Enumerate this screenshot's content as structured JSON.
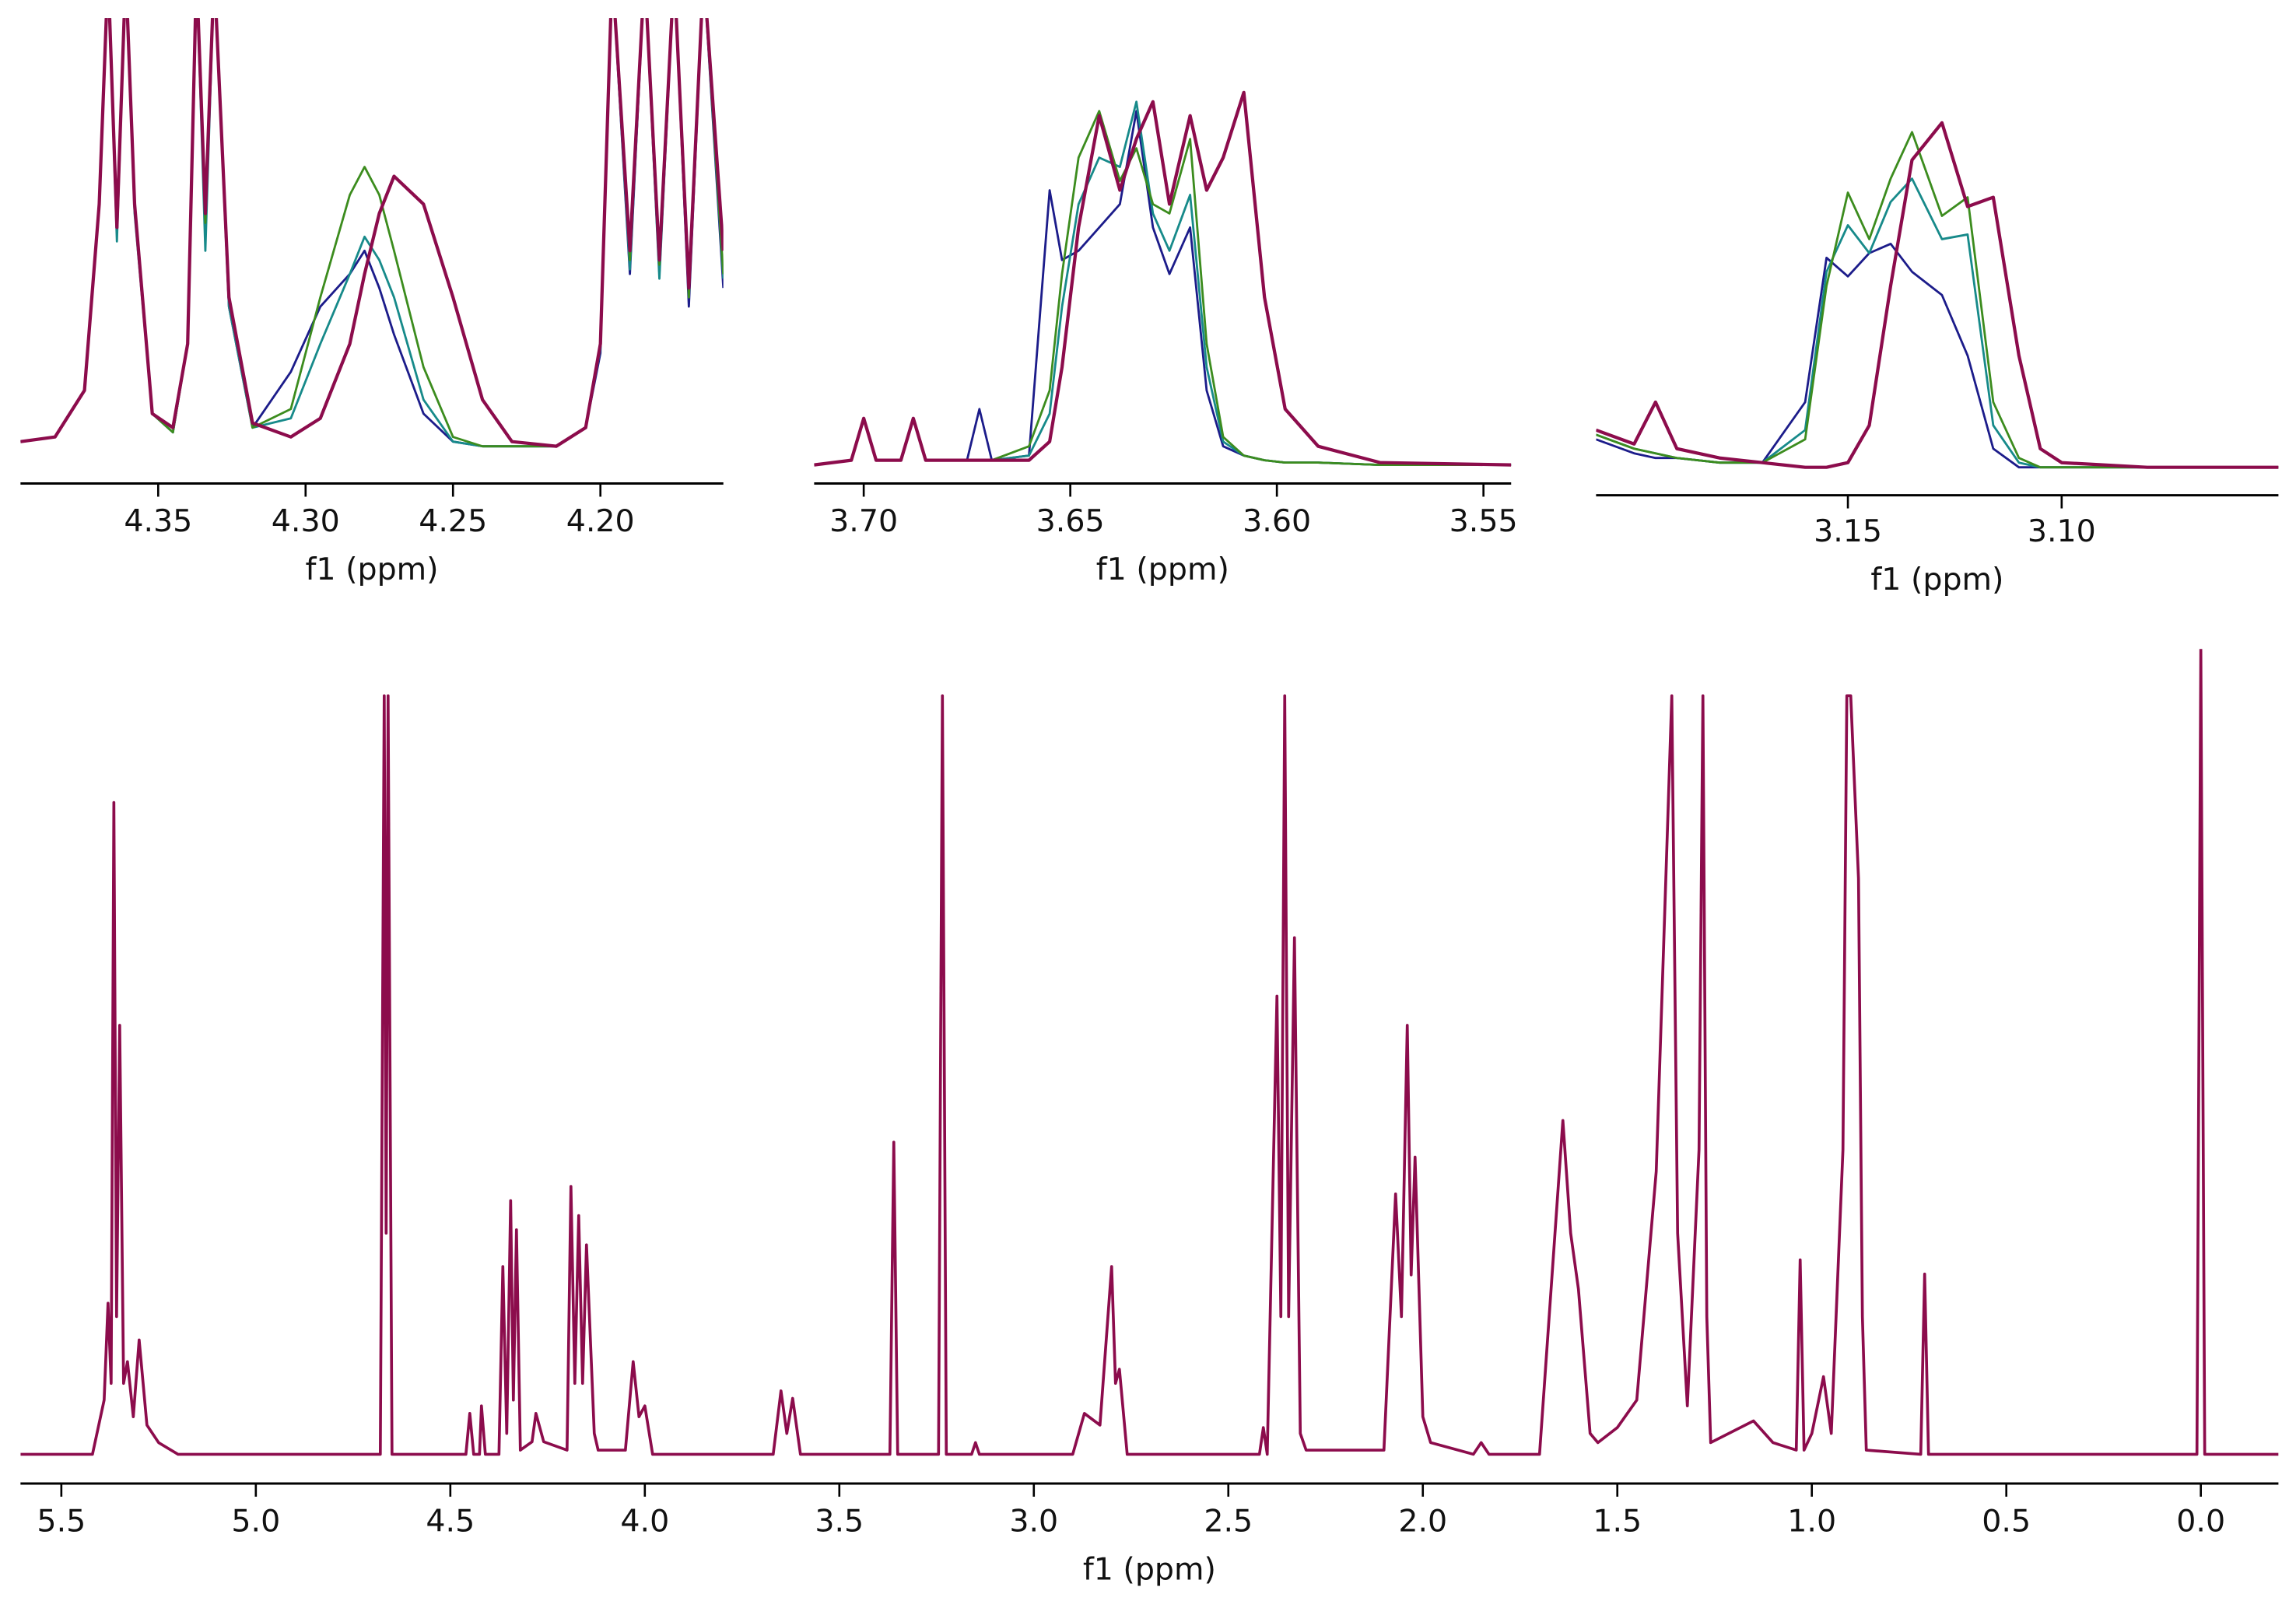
{
  "chart_data": [
    {
      "type": "line",
      "xlabel": "f1 (ppm)",
      "xlim": [
        4.3967,
        4.1583
      ],
      "ylim": [
        0,
        100
      ],
      "xticks": [
        4.35,
        {
          "value": 4.3,
          "label": "4.30"
        },
        4.25,
        {
          "value": 4.2,
          "label": "4.20"
        }
      ],
      "x": [
        4.3967,
        4.385,
        4.375,
        4.37,
        4.367,
        4.364,
        4.361,
        4.358,
        4.352,
        4.345,
        4.34,
        4.337,
        4.334,
        4.331,
        4.326,
        4.318,
        4.305,
        4.295,
        4.285,
        4.28,
        4.275,
        4.27,
        4.26,
        4.25,
        4.24,
        4.23,
        4.215,
        4.205,
        4.2,
        4.196,
        4.19,
        4.185,
        4.18,
        4.175,
        4.17,
        4.165,
        4.1583
      ],
      "series": [
        {
          "color": "#1c1c8a",
          "values": [
            9,
            10,
            20,
            60,
            110,
            55,
            110,
            60,
            15,
            11,
            30,
            110,
            55,
            110,
            38,
            12,
            24,
            38,
            45,
            50,
            42,
            32,
            15,
            9,
            8,
            8,
            8,
            12,
            28,
            110,
            45,
            110,
            45,
            110,
            38,
            110,
            42
          ]
        },
        {
          "color": "#178a8a",
          "values": [
            9,
            10,
            20,
            60,
            110,
            52,
            110,
            58,
            15,
            11,
            30,
            110,
            50,
            110,
            38,
            12,
            14,
            30,
            45,
            53,
            48,
            40,
            18,
            9,
            8,
            8,
            8,
            12,
            29,
            110,
            46,
            110,
            44,
            110,
            40,
            110,
            44
          ]
        },
        {
          "color": "#3c8c1e",
          "values": [
            9,
            10,
            20,
            60,
            110,
            55,
            110,
            60,
            15,
            11,
            30,
            110,
            56,
            110,
            40,
            12,
            16,
            40,
            62,
            68,
            62,
            50,
            25,
            10,
            8,
            8,
            8,
            12,
            30,
            110,
            48,
            110,
            47,
            110,
            40,
            110,
            45
          ]
        },
        {
          "color": "#8c0c4c",
          "values": [
            9,
            10,
            20,
            60,
            110,
            55,
            110,
            60,
            15,
            12,
            30,
            110,
            58,
            110,
            40,
            13,
            10,
            14,
            30,
            45,
            58,
            66,
            60,
            40,
            18,
            9,
            8,
            12,
            30,
            110,
            50,
            110,
            48,
            110,
            42,
            110,
            50
          ]
        }
      ]
    },
    {
      "type": "line",
      "xlabel": "f1 (ppm)",
      "xlim": [
        3.712,
        3.5433
      ],
      "ylim": [
        0,
        100
      ],
      "xticks": [
        {
          "value": 3.7,
          "label": "3.70"
        },
        3.65,
        {
          "value": 3.6,
          "label": "3.60"
        },
        3.55
      ],
      "x": [
        3.712,
        3.703,
        3.7,
        3.697,
        3.691,
        3.688,
        3.685,
        3.675,
        3.672,
        3.669,
        3.66,
        3.655,
        3.652,
        3.648,
        3.643,
        3.638,
        3.634,
        3.63,
        3.626,
        3.621,
        3.617,
        3.613,
        3.608,
        3.603,
        3.598,
        3.59,
        3.575,
        3.5433
      ],
      "series": [
        {
          "color": "#1c1c8a",
          "values": [
            4,
            5,
            14,
            5,
            5,
            14,
            5,
            5,
            16,
            5,
            6,
            63,
            48,
            50,
            55,
            60,
            80,
            55,
            45,
            55,
            20,
            8,
            6,
            5,
            4.5,
            4.5,
            4,
            4
          ]
        },
        {
          "color": "#178a8a",
          "values": [
            4,
            5,
            14,
            5,
            5,
            14,
            5,
            5,
            5,
            5,
            6,
            15,
            38,
            60,
            70,
            68,
            82,
            58,
            50,
            62,
            25,
            9,
            6,
            5,
            4.5,
            4.5,
            4,
            4
          ]
        },
        {
          "color": "#3c8c1e",
          "values": [
            4,
            5,
            14,
            5,
            5,
            14,
            5,
            5,
            5,
            5,
            8,
            20,
            45,
            70,
            80,
            65,
            72,
            60,
            58,
            74,
            30,
            10,
            6,
            5,
            4.5,
            4.5,
            4,
            4
          ]
        },
        {
          "color": "#8c0c4c",
          "values": [
            4,
            5,
            14,
            5,
            5,
            14,
            5,
            5,
            5,
            5,
            5,
            9,
            25,
            55,
            79,
            63,
            74,
            82,
            60,
            79,
            63,
            70,
            84,
            40,
            16,
            8,
            4.5,
            4
          ]
        }
      ]
    },
    {
      "type": "line",
      "xlabel": "f1 (ppm)",
      "xlim": [
        3.2089,
        3.0493
      ],
      "ylim": [
        0,
        100
      ],
      "xticks": [
        3.15,
        {
          "value": 3.1,
          "label": "3.10"
        }
      ],
      "x": [
        3.2089,
        3.2,
        3.195,
        3.19,
        3.18,
        3.17,
        3.16,
        3.155,
        3.15,
        3.145,
        3.14,
        3.135,
        3.128,
        3.122,
        3.116,
        3.11,
        3.105,
        3.1,
        3.08,
        3.0493
      ],
      "series": [
        {
          "color": "#1c1c8a",
          "values": [
            12,
            9,
            8,
            8,
            7,
            7,
            20,
            51,
            47,
            52,
            54,
            48,
            43,
            30,
            10,
            6,
            6,
            6,
            6,
            6
          ]
        },
        {
          "color": "#178a8a",
          "values": [
            13,
            10,
            9,
            8,
            7,
            7,
            14,
            48,
            58,
            52,
            63,
            68,
            55,
            56,
            15,
            7,
            6,
            6,
            6,
            6
          ]
        },
        {
          "color": "#3c8c1e",
          "values": [
            13,
            10,
            9,
            8,
            7,
            7,
            12,
            45,
            65,
            55,
            68,
            78,
            60,
            64,
            20,
            8,
            6,
            6,
            6,
            6
          ]
        },
        {
          "color": "#8c0c4c",
          "values": [
            14,
            11,
            20,
            10,
            8,
            7,
            6,
            6,
            7,
            15,
            45,
            72,
            80,
            62,
            64,
            30,
            10,
            7,
            6,
            6
          ]
        }
      ]
    },
    {
      "type": "line",
      "xlabel": "f1 (ppm)",
      "xlim": [
        5.605,
        -0.1995
      ],
      "ylim": [
        0,
        100
      ],
      "xticks": [
        5.5,
        {
          "value": 5,
          "label": "5.0"
        },
        4.5,
        {
          "value": 4,
          "label": "4.0"
        },
        3.5,
        {
          "value": 3,
          "label": "3.0"
        },
        2.5,
        {
          "value": 2,
          "label": "2.0"
        },
        1.5,
        {
          "value": 1,
          "label": "1.0"
        },
        0.5,
        {
          "value": 0,
          "label": "0.0"
        }
      ],
      "x": [
        5.605,
        5.42,
        5.39,
        5.38,
        5.372,
        5.365,
        5.358,
        5.35,
        5.34,
        5.33,
        5.315,
        5.3,
        5.28,
        5.25,
        5.2,
        4.68,
        4.67,
        4.665,
        4.66,
        4.65,
        4.46,
        4.45,
        4.44,
        4.425,
        4.42,
        4.41,
        4.375,
        4.365,
        4.355,
        4.345,
        4.338,
        4.33,
        4.32,
        4.29,
        4.28,
        4.26,
        4.2,
        4.19,
        4.18,
        4.17,
        4.16,
        4.15,
        4.13,
        4.12,
        4.05,
        4.03,
        4.015,
        4.0,
        3.98,
        3.67,
        3.65,
        3.635,
        3.62,
        3.6,
        3.37,
        3.36,
        3.35,
        3.245,
        3.235,
        3.225,
        3.16,
        3.15,
        3.14,
        2.9,
        2.87,
        2.83,
        2.8,
        2.79,
        2.78,
        2.76,
        2.42,
        2.41,
        2.4,
        2.375,
        2.365,
        2.355,
        2.345,
        2.33,
        2.315,
        2.3,
        2.1,
        2.07,
        2.055,
        2.04,
        2.03,
        2.02,
        2.0,
        1.98,
        1.87,
        1.85,
        1.83,
        1.7,
        1.64,
        1.62,
        1.6,
        1.57,
        1.55,
        1.5,
        1.45,
        1.4,
        1.37,
        1.36,
        1.345,
        1.32,
        1.29,
        1.28,
        1.27,
        1.26,
        1.15,
        1.1,
        1.04,
        1.03,
        1.02,
        1.0,
        0.97,
        0.95,
        0.92,
        0.91,
        0.9,
        0.88,
        0.87,
        0.86,
        0.72,
        0.71,
        0.7,
        0.01,
        0.0,
        -0.01,
        -0.1995
      ],
      "series": [
        {
          "color": "#8c0c4c",
          "values": [
            3.5,
            3.5,
            10,
            21.6,
            12,
            81.6,
            20,
            54.9,
            12,
            14.6,
            8,
            17.2,
            7,
            4.9,
            3.5,
            3.5,
            94.4,
            30,
            94.4,
            3.5,
            3.5,
            8.4,
            3.5,
            3.5,
            9.3,
            3.5,
            3.5,
            26,
            6,
            33.9,
            10,
            30.4,
            4,
            5,
            8.4,
            5,
            4,
            35.6,
            12,
            32.1,
            12,
            28.6,
            6,
            4,
            4,
            14.6,
            8,
            9.3,
            3.5,
            3.5,
            11.1,
            6,
            10.2,
            3.5,
            3.5,
            40.9,
            3.5,
            3.5,
            94.4,
            3.5,
            3.5,
            4.9,
            3.5,
            3.5,
            8.4,
            7,
            26,
            12,
            13.7,
            3.5,
            3.5,
            6.7,
            3.5,
            58.4,
            20,
            94.4,
            20,
            65.4,
            6,
            4,
            4,
            34.7,
            20,
            54.9,
            25,
            39.1,
            8,
            4.9,
            3.5,
            4.9,
            3.5,
            3.5,
            43.5,
            30,
            23.3,
            6,
            4.9,
            6.7,
            10,
            37.4,
            80,
            94.4,
            30,
            9.3,
            40,
            94.4,
            20,
            4.9,
            7.5,
            4.9,
            4,
            26.8,
            4,
            6,
            12.8,
            6,
            40,
            94.4,
            94.4,
            72.5,
            20,
            4,
            3.5,
            25.1,
            3.5,
            3.5,
            100,
            3.5,
            3.5
          ]
        }
      ]
    }
  ]
}
